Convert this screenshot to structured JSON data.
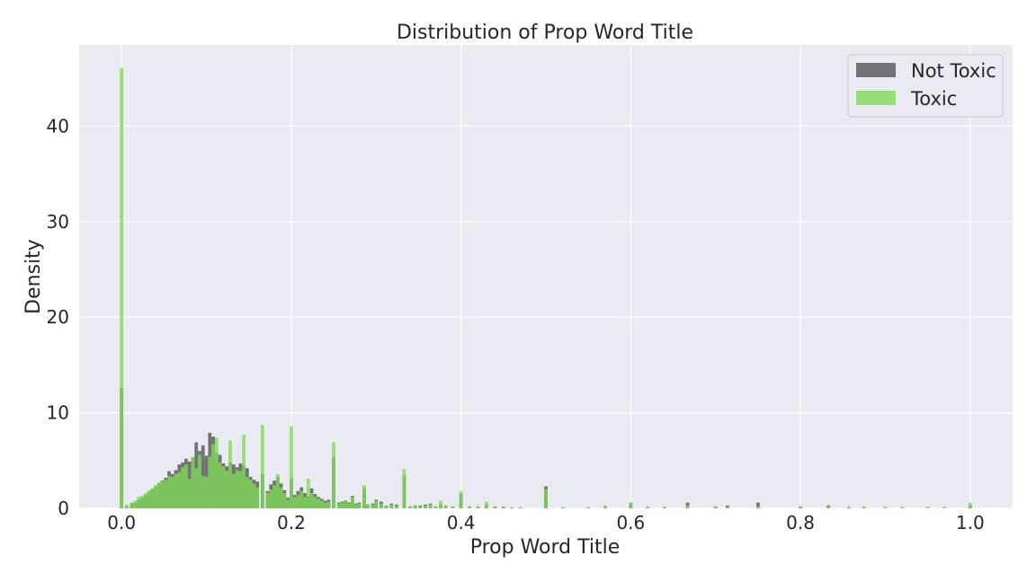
{
  "chart_data": {
    "type": "bar",
    "subtype": "histogram",
    "title": "Distribution of Prop Word Title",
    "xlabel": "Prop Word Title",
    "ylabel": "Density",
    "xlim": [
      -0.05,
      1.05
    ],
    "ylim": [
      0,
      48.5
    ],
    "xticks": [
      0.0,
      0.2,
      0.4,
      0.6,
      0.8,
      1.0
    ],
    "xtick_labels": [
      "0.0",
      "0.2",
      "0.4",
      "0.6",
      "0.8",
      "1.0"
    ],
    "yticks": [
      0,
      10,
      20,
      30,
      40
    ],
    "ytick_labels": [
      "0",
      "10",
      "20",
      "30",
      "40"
    ],
    "grid": true,
    "legend_position": "top-right",
    "bin_width": 0.004,
    "series": [
      {
        "name": "Not Toxic",
        "color": "#555555",
        "opacity": 0.8,
        "points": [
          [
            0.0,
            12.6
          ],
          [
            0.006,
            0.2
          ],
          [
            0.012,
            0.5
          ],
          [
            0.016,
            0.6
          ],
          [
            0.02,
            0.9
          ],
          [
            0.024,
            1.1
          ],
          [
            0.028,
            1.4
          ],
          [
            0.032,
            1.7
          ],
          [
            0.036,
            2.0
          ],
          [
            0.04,
            2.3
          ],
          [
            0.044,
            2.6
          ],
          [
            0.048,
            2.9
          ],
          [
            0.052,
            3.2
          ],
          [
            0.056,
            3.9
          ],
          [
            0.06,
            3.6
          ],
          [
            0.064,
            4.0
          ],
          [
            0.068,
            4.6
          ],
          [
            0.072,
            4.8
          ],
          [
            0.076,
            5.2
          ],
          [
            0.08,
            4.9
          ],
          [
            0.084,
            5.3
          ],
          [
            0.088,
            6.9
          ],
          [
            0.092,
            6.0
          ],
          [
            0.096,
            6.6
          ],
          [
            0.1,
            5.5
          ],
          [
            0.104,
            7.9
          ],
          [
            0.108,
            7.5
          ],
          [
            0.112,
            5.8
          ],
          [
            0.116,
            5.6
          ],
          [
            0.12,
            4.7
          ],
          [
            0.124,
            4.4
          ],
          [
            0.128,
            4.8
          ],
          [
            0.132,
            4.6
          ],
          [
            0.136,
            4.3
          ],
          [
            0.14,
            4.7
          ],
          [
            0.144,
            4.5
          ],
          [
            0.148,
            4.2
          ],
          [
            0.152,
            3.3
          ],
          [
            0.156,
            3.0
          ],
          [
            0.16,
            2.8
          ],
          [
            0.166,
            3.6
          ],
          [
            0.172,
            1.8
          ],
          [
            0.176,
            2.5
          ],
          [
            0.18,
            2.9
          ],
          [
            0.184,
            3.3
          ],
          [
            0.188,
            2.6
          ],
          [
            0.192,
            1.9
          ],
          [
            0.196,
            1.1
          ],
          [
            0.2,
            3.1
          ],
          [
            0.204,
            1.4
          ],
          [
            0.208,
            1.8
          ],
          [
            0.212,
            2.2
          ],
          [
            0.216,
            1.6
          ],
          [
            0.22,
            1.3
          ],
          [
            0.224,
            2.1
          ],
          [
            0.228,
            1.5
          ],
          [
            0.232,
            1.2
          ],
          [
            0.236,
            1.0
          ],
          [
            0.24,
            0.8
          ],
          [
            0.244,
            0.9
          ],
          [
            0.25,
            5.3
          ],
          [
            0.256,
            0.6
          ],
          [
            0.26,
            0.7
          ],
          [
            0.264,
            0.8
          ],
          [
            0.268,
            0.6
          ],
          [
            0.272,
            1.3
          ],
          [
            0.276,
            0.5
          ],
          [
            0.28,
            0.6
          ],
          [
            0.286,
            2.1
          ],
          [
            0.29,
            0.4
          ],
          [
            0.296,
            0.5
          ],
          [
            0.3,
            0.9
          ],
          [
            0.306,
            0.7
          ],
          [
            0.312,
            0.3
          ],
          [
            0.318,
            0.5
          ],
          [
            0.324,
            0.4
          ],
          [
            0.333,
            3.4
          ],
          [
            0.34,
            0.2
          ],
          [
            0.346,
            0.3
          ],
          [
            0.352,
            0.3
          ],
          [
            0.358,
            0.4
          ],
          [
            0.364,
            0.5
          ],
          [
            0.37,
            0.2
          ],
          [
            0.376,
            0.4
          ],
          [
            0.382,
            0.3
          ],
          [
            0.39,
            0.2
          ],
          [
            0.4,
            1.5
          ],
          [
            0.41,
            0.2
          ],
          [
            0.42,
            0.2
          ],
          [
            0.43,
            0.4
          ],
          [
            0.44,
            0.2
          ],
          [
            0.45,
            0.2
          ],
          [
            0.46,
            0.1
          ],
          [
            0.47,
            0.1
          ],
          [
            0.5,
            2.3
          ],
          [
            0.52,
            0.1
          ],
          [
            0.55,
            0.1
          ],
          [
            0.57,
            0.2
          ],
          [
            0.6,
            0.6
          ],
          [
            0.62,
            0.1
          ],
          [
            0.64,
            0.1
          ],
          [
            0.667,
            0.6
          ],
          [
            0.7,
            0.2
          ],
          [
            0.714,
            0.3
          ],
          [
            0.75,
            0.6
          ],
          [
            0.8,
            0.2
          ],
          [
            0.833,
            0.3
          ],
          [
            0.857,
            0.1
          ],
          [
            0.875,
            0.1
          ],
          [
            1.0,
            0.3
          ]
        ]
      },
      {
        "name": "Toxic",
        "color": "#7ed957",
        "opacity": 0.8,
        "points": [
          [
            0.0,
            46.1
          ],
          [
            0.006,
            0.4
          ],
          [
            0.012,
            0.6
          ],
          [
            0.016,
            0.8
          ],
          [
            0.02,
            1.2
          ],
          [
            0.024,
            1.3
          ],
          [
            0.028,
            1.6
          ],
          [
            0.032,
            1.9
          ],
          [
            0.036,
            2.1
          ],
          [
            0.04,
            2.4
          ],
          [
            0.044,
            2.7
          ],
          [
            0.048,
            2.8
          ],
          [
            0.052,
            3.0
          ],
          [
            0.056,
            3.4
          ],
          [
            0.06,
            3.3
          ],
          [
            0.064,
            3.6
          ],
          [
            0.068,
            3.8
          ],
          [
            0.072,
            4.3
          ],
          [
            0.076,
            4.6
          ],
          [
            0.08,
            3.1
          ],
          [
            0.084,
            5.4
          ],
          [
            0.088,
            4.2
          ],
          [
            0.092,
            5.6
          ],
          [
            0.096,
            3.4
          ],
          [
            0.1,
            3.3
          ],
          [
            0.104,
            5.4
          ],
          [
            0.108,
            6.7
          ],
          [
            0.112,
            7.4
          ],
          [
            0.116,
            4.8
          ],
          [
            0.12,
            4.4
          ],
          [
            0.124,
            3.9
          ],
          [
            0.128,
            7.1
          ],
          [
            0.132,
            3.6
          ],
          [
            0.136,
            4.0
          ],
          [
            0.14,
            3.9
          ],
          [
            0.144,
            7.7
          ],
          [
            0.148,
            3.3
          ],
          [
            0.152,
            3.0
          ],
          [
            0.156,
            2.6
          ],
          [
            0.16,
            2.2
          ],
          [
            0.166,
            8.7
          ],
          [
            0.172,
            1.6
          ],
          [
            0.176,
            2.0
          ],
          [
            0.18,
            2.4
          ],
          [
            0.184,
            3.6
          ],
          [
            0.188,
            2.2
          ],
          [
            0.192,
            1.6
          ],
          [
            0.196,
            0.9
          ],
          [
            0.2,
            8.6
          ],
          [
            0.204,
            1.2
          ],
          [
            0.208,
            1.4
          ],
          [
            0.212,
            1.8
          ],
          [
            0.216,
            1.2
          ],
          [
            0.22,
            3.1
          ],
          [
            0.224,
            1.6
          ],
          [
            0.228,
            1.2
          ],
          [
            0.232,
            1.0
          ],
          [
            0.236,
            0.8
          ],
          [
            0.24,
            0.6
          ],
          [
            0.244,
            0.7
          ],
          [
            0.25,
            6.9
          ],
          [
            0.256,
            0.5
          ],
          [
            0.26,
            0.6
          ],
          [
            0.264,
            0.7
          ],
          [
            0.268,
            0.5
          ],
          [
            0.272,
            1.2
          ],
          [
            0.276,
            0.4
          ],
          [
            0.28,
            0.5
          ],
          [
            0.286,
            2.4
          ],
          [
            0.29,
            0.4
          ],
          [
            0.296,
            0.4
          ],
          [
            0.3,
            0.8
          ],
          [
            0.306,
            0.5
          ],
          [
            0.312,
            0.3
          ],
          [
            0.318,
            0.4
          ],
          [
            0.324,
            0.3
          ],
          [
            0.333,
            4.1
          ],
          [
            0.34,
            0.2
          ],
          [
            0.346,
            0.3
          ],
          [
            0.352,
            0.2
          ],
          [
            0.358,
            0.3
          ],
          [
            0.364,
            0.4
          ],
          [
            0.37,
            0.2
          ],
          [
            0.376,
            0.8
          ],
          [
            0.382,
            0.3
          ],
          [
            0.39,
            0.2
          ],
          [
            0.4,
            1.8
          ],
          [
            0.41,
            0.2
          ],
          [
            0.42,
            0.2
          ],
          [
            0.43,
            0.7
          ],
          [
            0.44,
            0.2
          ],
          [
            0.45,
            0.2
          ],
          [
            0.46,
            0.1
          ],
          [
            0.47,
            0.1
          ],
          [
            0.5,
            2.0
          ],
          [
            0.52,
            0.1
          ],
          [
            0.55,
            0.1
          ],
          [
            0.57,
            0.3
          ],
          [
            0.6,
            0.6
          ],
          [
            0.62,
            0.2
          ],
          [
            0.64,
            0.2
          ],
          [
            0.667,
            0.3
          ],
          [
            0.7,
            0.2
          ],
          [
            0.714,
            0.2
          ],
          [
            0.75,
            0.2
          ],
          [
            0.8,
            0.2
          ],
          [
            0.833,
            0.2
          ],
          [
            0.857,
            0.2
          ],
          [
            0.875,
            0.2
          ],
          [
            0.9,
            0.2
          ],
          [
            0.92,
            0.2
          ],
          [
            0.95,
            0.2
          ],
          [
            0.97,
            0.2
          ],
          [
            1.0,
            0.6
          ]
        ]
      }
    ]
  },
  "colors": {
    "plot_background": "#eaeaf2",
    "grid": "#ffffff",
    "legend_border": "#cccccc"
  }
}
